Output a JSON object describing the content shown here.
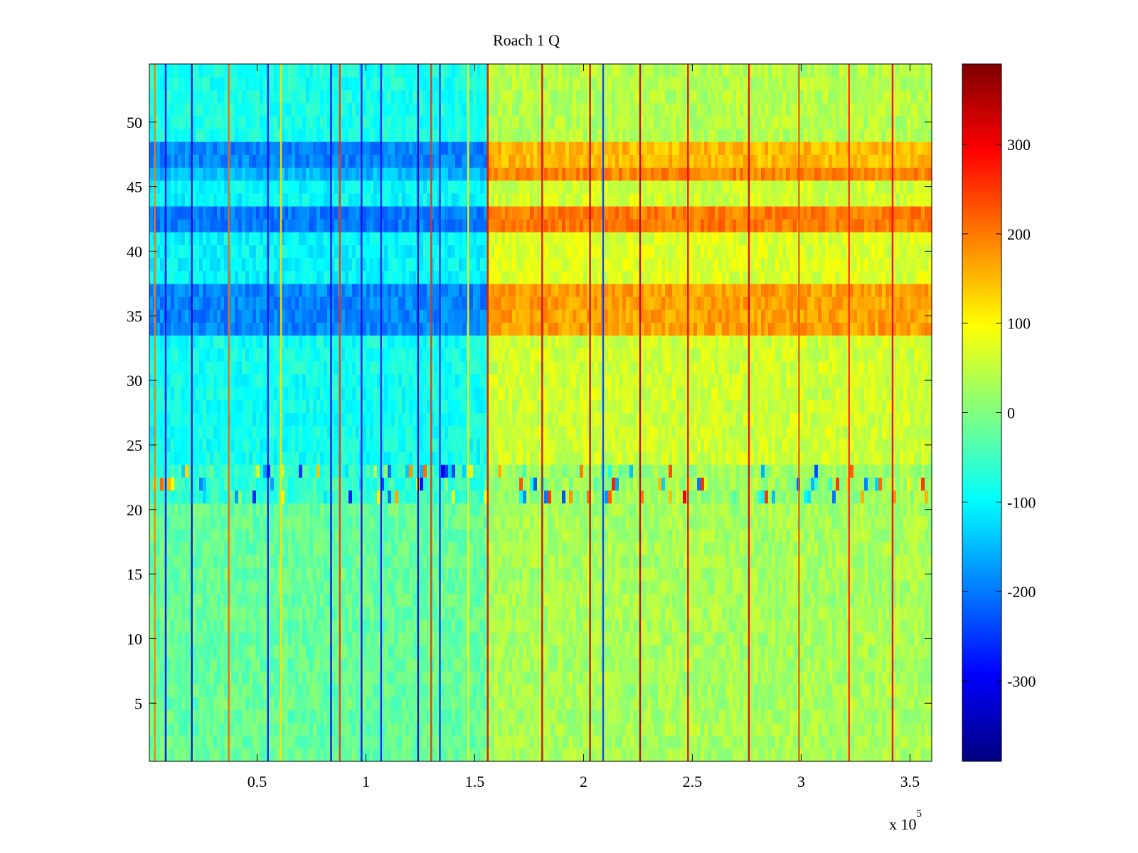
{
  "chart_data": {
    "type": "heatmap",
    "title": "Roach 1 Q",
    "xlabel": "",
    "ylabel": "",
    "x_multiplier_label": {
      "base": "x 10",
      "exponent": "5"
    },
    "xlim": [
      500,
      360000
    ],
    "ylim": [
      0.5,
      54.5
    ],
    "xticks": [
      0.5,
      1,
      1.5,
      2,
      2.5,
      3,
      3.5
    ],
    "xtick_labels": [
      "0.5",
      "1",
      "1.5",
      "2",
      "2.5",
      "3",
      "3.5"
    ],
    "yticks": [
      5,
      10,
      15,
      20,
      25,
      30,
      35,
      40,
      45,
      50
    ],
    "ytick_labels": [
      "5",
      "10",
      "15",
      "20",
      "25",
      "30",
      "35",
      "40",
      "45",
      "50"
    ],
    "colormap": "jet",
    "clim": [
      -390,
      390
    ],
    "colorbar": {
      "ticks": [
        -300,
        -200,
        -100,
        0,
        100,
        200,
        300
      ],
      "tick_labels": [
        "-300",
        "-200",
        "-100",
        "0",
        "100",
        "200",
        "300"
      ]
    },
    "change_point_x": 156000,
    "row_bands": [
      {
        "rows": [
          1,
          20
        ],
        "value_before": -20,
        "value_after": 30
      },
      {
        "rows": [
          21,
          23
        ],
        "value_before": -60,
        "value_after": 20,
        "note": "high variance"
      },
      {
        "rows": [
          24,
          33
        ],
        "value_before": -85,
        "value_after": 60
      },
      {
        "rows": [
          34,
          37
        ],
        "value_before": -190,
        "value_after": 170
      },
      {
        "rows": [
          38,
          41
        ],
        "value_before": -100,
        "value_after": 70
      },
      {
        "rows": [
          42,
          43
        ],
        "value_before": -200,
        "value_after": 200
      },
      {
        "rows": [
          44,
          45
        ],
        "value_before": -100,
        "value_after": 60
      },
      {
        "rows": [
          46,
          46
        ],
        "value_before": -150,
        "value_after": 190
      },
      {
        "rows": [
          47,
          48
        ],
        "value_before": -190,
        "value_after": 150
      },
      {
        "rows": [
          49,
          54
        ],
        "value_before": -80,
        "value_after": 40
      }
    ],
    "vertical_streaks": [
      {
        "x": 3000,
        "value": 200
      },
      {
        "x": 8000,
        "value": -300
      },
      {
        "x": 20000,
        "value": -330
      },
      {
        "x": 37000,
        "value": 220
      },
      {
        "x": 55000,
        "value": -280
      },
      {
        "x": 61000,
        "value": 120
      },
      {
        "x": 84000,
        "value": -300
      },
      {
        "x": 88000,
        "value": 260
      },
      {
        "x": 98000,
        "value": -320
      },
      {
        "x": 107000,
        "value": -280
      },
      {
        "x": 124000,
        "value": -340
      },
      {
        "x": 130000,
        "value": 260
      },
      {
        "x": 134000,
        "value": -260
      },
      {
        "x": 147000,
        "value": 100
      },
      {
        "x": 156000,
        "value": 300
      },
      {
        "x": 181000,
        "value": 320
      },
      {
        "x": 203000,
        "value": 330
      },
      {
        "x": 209000,
        "value": -250
      },
      {
        "x": 226000,
        "value": 350
      },
      {
        "x": 248000,
        "value": 300
      },
      {
        "x": 276000,
        "value": 310
      },
      {
        "x": 299000,
        "value": 230
      },
      {
        "x": 322000,
        "value": 260
      },
      {
        "x": 342000,
        "value": 300
      }
    ]
  }
}
